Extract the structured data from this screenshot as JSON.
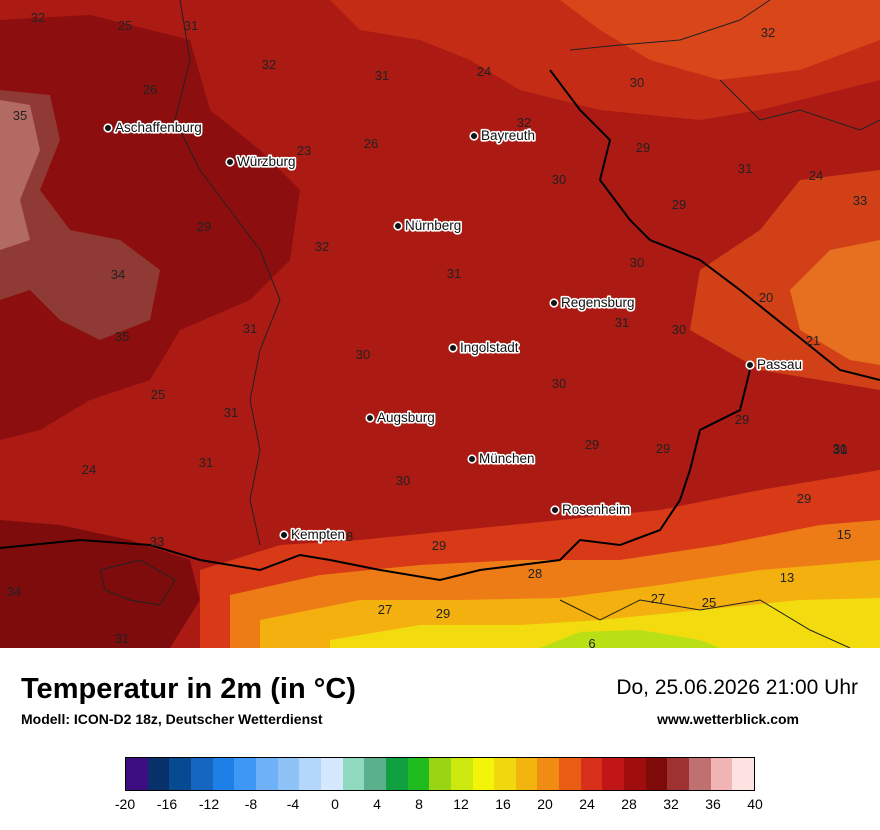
{
  "footer": {
    "title": "Temperatur in 2m (in °C)",
    "model": "Modell: ICON-D2 18z, Deutscher Wetterdienst",
    "datetime": "Do, 25.06.2026 21:00 Uhr",
    "website": "www.wetterblick.com"
  },
  "legend": {
    "colors": [
      "#3d0e82",
      "#08306b",
      "#084a91",
      "#1566c0",
      "#1e7fe6",
      "#3f97f5",
      "#6fb1f7",
      "#8fc3f8",
      "#b3d6fb",
      "#d5e8fd",
      "#90d8be",
      "#5aaf8c",
      "#10a040",
      "#1ebc1e",
      "#9ad514",
      "#cde80e",
      "#f2f40a",
      "#f1d80e",
      "#f4b40e",
      "#f08c14",
      "#e85c14",
      "#d8301a",
      "#c01616",
      "#a00d0d",
      "#7e0a0a",
      "#9e3232",
      "#c07070",
      "#f0b4b4",
      "#fde2e2"
    ],
    "ticks": [
      "-20",
      "-16",
      "-12",
      "-8",
      "-4",
      "0",
      "4",
      "8",
      "12",
      "16",
      "20",
      "24",
      "28",
      "32",
      "36",
      "40"
    ]
  },
  "cities": [
    {
      "name": "Aschaffenburg"
    },
    {
      "name": "Würzburg"
    },
    {
      "name": "Bayreuth"
    },
    {
      "name": "Nürnberg"
    },
    {
      "name": "Regensburg"
    },
    {
      "name": "Ingolstadt"
    },
    {
      "name": "Passau"
    },
    {
      "name": "Augsburg"
    },
    {
      "name": "München"
    },
    {
      "name": "Rosenheim"
    },
    {
      "name": "Kempten"
    }
  ],
  "isolines": [
    "32",
    "25",
    "31",
    "32",
    "31",
    "24",
    "30",
    "32",
    "35",
    "26",
    "23",
    "32",
    "26",
    "29",
    "30",
    "31",
    "24",
    "29",
    "29",
    "33",
    "32",
    "30",
    "34",
    "31",
    "20",
    "30",
    "31",
    "35",
    "31",
    "30",
    "21",
    "31",
    "25",
    "31",
    "30",
    "29",
    "29",
    "29",
    "24",
    "31",
    "30",
    "29",
    "30",
    "33",
    "28",
    "29",
    "15",
    "13",
    "34",
    "28",
    "27",
    "29",
    "27",
    "25",
    "31",
    "6",
    "31"
  ]
}
